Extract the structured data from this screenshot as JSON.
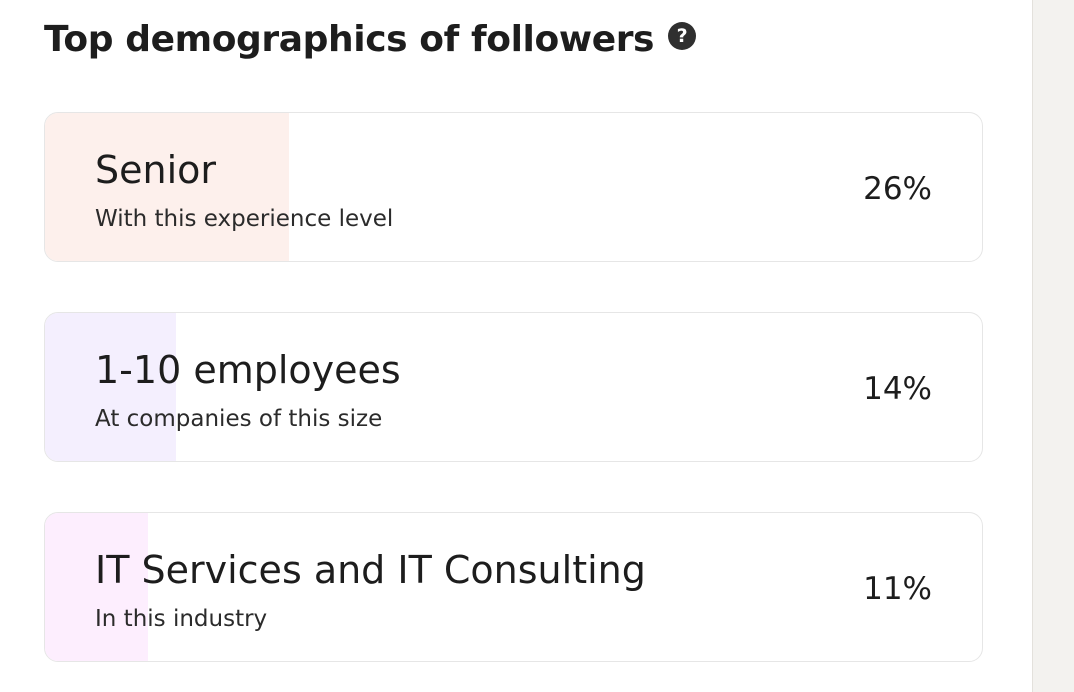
{
  "section": {
    "title": "Top demographics of followers",
    "help_icon": "question-circle-icon"
  },
  "demographics": [
    {
      "label": "Senior",
      "description": "With this experience level",
      "percent_label": "26%",
      "percent": 26,
      "fill_color": "#fdf0ec"
    },
    {
      "label": "1-10 employees",
      "description": "At companies of this size",
      "percent_label": "14%",
      "percent": 14,
      "fill_color": "#f4effe"
    },
    {
      "label": "IT Services and IT Consulting",
      "description": "In this industry",
      "percent_label": "11%",
      "percent": 11,
      "fill_color": "#fdeefe"
    }
  ]
}
